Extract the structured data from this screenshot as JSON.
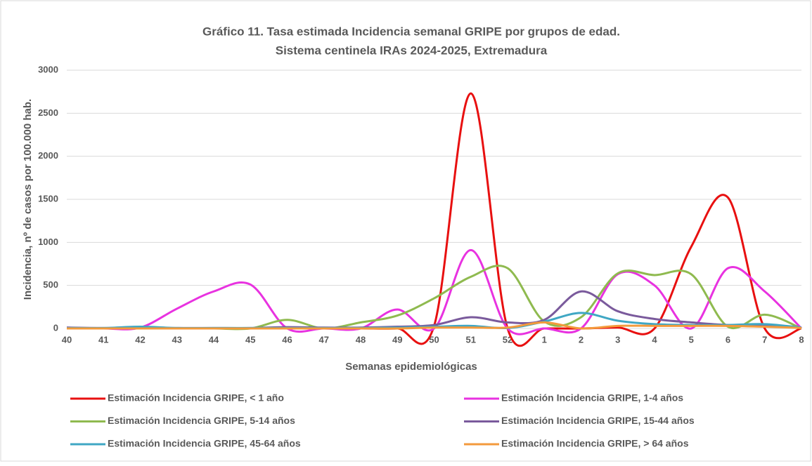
{
  "chart_data": {
    "type": "line",
    "title": "Gráfico 11. Tasa estimada Incidencia semanal GRIPE por grupos de edad.",
    "subtitle": "Sistema centinela IRAs 2024-2025, Extremadura",
    "x_label": "Semanas epidemiológicas",
    "y_label": "Incidencia, nº de casos por 100.000 hab.",
    "categories": [
      "40",
      "41",
      "42",
      "43",
      "44",
      "45",
      "46",
      "47",
      "48",
      "49",
      "50",
      "51",
      "52",
      "1",
      "2",
      "3",
      "4",
      "5",
      "6",
      "7",
      "8"
    ],
    "ylim": [
      0,
      3000
    ],
    "yticks": [
      0,
      500,
      1000,
      1500,
      2000,
      2500,
      3000
    ],
    "grid": true,
    "smooth": true,
    "series": [
      {
        "name": "Estimación Incidencia GRIPE, < 1 año",
        "color": "#e81010",
        "values": [
          0,
          0,
          0,
          0,
          0,
          0,
          0,
          0,
          0,
          0,
          30,
          2730,
          0,
          0,
          0,
          10,
          0,
          950,
          1520,
          0,
          0
        ]
      },
      {
        "name": "Estimación Incidencia GRIPE, 1-4 años",
        "color": "#e832e0",
        "values": [
          10,
          0,
          10,
          230,
          430,
          510,
          0,
          0,
          0,
          220,
          0,
          910,
          0,
          0,
          0,
          630,
          500,
          0,
          700,
          430,
          0
        ]
      },
      {
        "name": "Estimación Incidencia GRIPE, 5-14 años",
        "color": "#8fba4f",
        "values": [
          0,
          0,
          0,
          0,
          0,
          0,
          100,
          0,
          70,
          150,
          350,
          600,
          700,
          80,
          130,
          640,
          620,
          630,
          20,
          160,
          0
        ]
      },
      {
        "name": "Estimación Incidencia GRIPE, 15-44 años",
        "color": "#7a5a9c",
        "values": [
          10,
          5,
          5,
          5,
          5,
          5,
          15,
          10,
          10,
          20,
          40,
          130,
          70,
          100,
          430,
          200,
          110,
          70,
          40,
          40,
          10
        ]
      },
      {
        "name": "Estimación Incidencia GRIPE, 45-64 años",
        "color": "#3fa7c4",
        "values": [
          5,
          5,
          20,
          5,
          5,
          5,
          5,
          5,
          5,
          10,
          20,
          30,
          5,
          80,
          180,
          90,
          50,
          40,
          40,
          50,
          10
        ]
      },
      {
        "name": "Estimación Incidencia GRIPE, > 64 años",
        "color": "#f39a3c",
        "values": [
          0,
          0,
          0,
          0,
          0,
          0,
          0,
          0,
          0,
          0,
          10,
          10,
          10,
          70,
          0,
          30,
          30,
          30,
          30,
          20,
          5
        ]
      }
    ]
  }
}
